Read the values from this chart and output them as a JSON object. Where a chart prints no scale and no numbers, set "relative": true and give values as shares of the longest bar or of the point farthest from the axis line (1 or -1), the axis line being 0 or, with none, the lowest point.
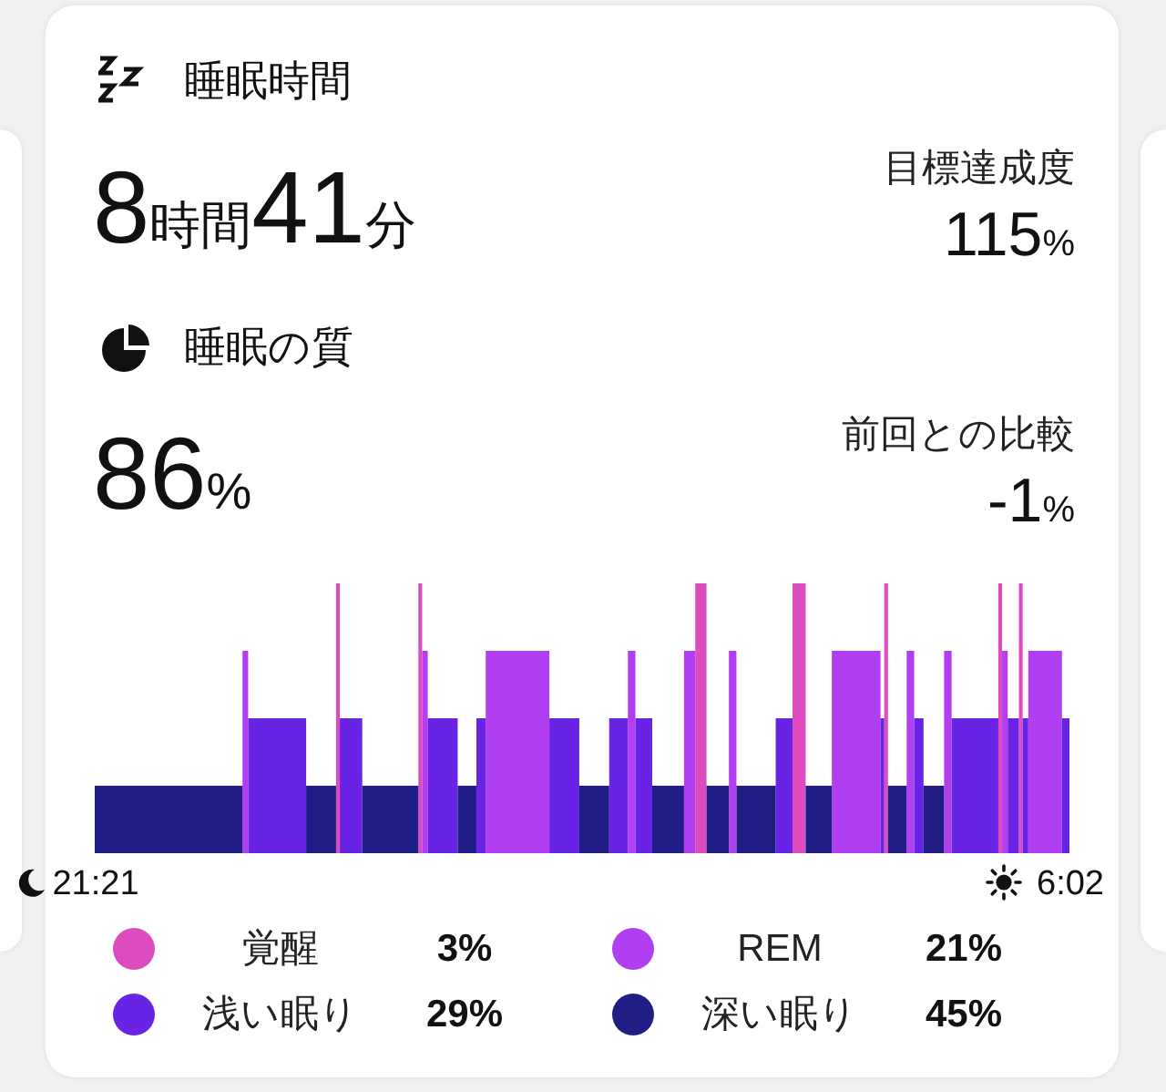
{
  "chart_data": [
    {
      "type": "other",
      "title": "睡眠時間",
      "annotations": [
        "8時間41分",
        "目標達成度",
        "115%"
      ]
    },
    {
      "type": "other",
      "title": "睡眠の質",
      "annotations": [
        "86%",
        "前回との比較",
        "-1%"
      ]
    },
    {
      "type": "area",
      "relative": true,
      "series": [
        {
          "name": "覚醒",
          "color": "#dd4cbf",
          "x": [
            "--01-01T23:30",
            "--01-01T23:30",
            "--01-01T23:32",
            "--01-01T23:32",
            "--01-02T00:14",
            "--01-02T00:14",
            "--01-02T00:16",
            "--01-02T00:16",
            "--01-02T02:42",
            "--01-02T02:42",
            "--01-02T02:48",
            "--01-02T02:48",
            "--01-02T03:34",
            "--01-02T03:34",
            "--01-02T03:41",
            "--01-02T03:41",
            "--01-02T04:23",
            "--01-02T04:23",
            "--01-02T04:25",
            "--01-02T04:25",
            "--01-02T05:24",
            "--01-02T05:24",
            "--01-02T05:26",
            "--01-02T05:26",
            "--01-02T05:35",
            "--01-02T05:35",
            "--01-02T05:37",
            "--01-02T05:37"
          ],
          "values": [
            0,
            1,
            1,
            0,
            0,
            1,
            1,
            0,
            0,
            1,
            1,
            0,
            0,
            1,
            1,
            0,
            0,
            1,
            1,
            0,
            0,
            1,
            1,
            0,
            0,
            1,
            1,
            0
          ]
        },
        {
          "name": "REM",
          "color": "#b13ef1",
          "x": [
            "--01-01T22:40",
            "--01-01T22:40",
            "--01-01T22:43",
            "--01-01T22:43",
            "--01-02T00:16",
            "--01-02T00:16",
            "--01-02T00:19",
            "--01-02T00:19",
            "--01-02T00:50",
            "--01-02T00:50",
            "--01-02T01:24",
            "--01-02T01:24",
            "--01-02T02:06",
            "--01-02T02:06",
            "--01-02T02:10",
            "--01-02T02:10",
            "--01-02T02:36",
            "--01-02T02:36",
            "--01-02T02:42",
            "--01-02T02:42",
            "--01-02T03:00",
            "--01-02T03:00",
            "--01-02T03:04",
            "--01-02T03:04",
            "--01-02T03:55",
            "--01-02T03:55",
            "--01-02T04:21",
            "--01-02T04:21",
            "--01-02T04:35",
            "--01-02T04:35",
            "--01-02T04:39",
            "--01-02T04:39",
            "--01-02T04:55",
            "--01-02T04:55",
            "--01-02T04:59",
            "--01-02T04:59",
            "--01-02T05:26",
            "--01-02T05:26",
            "--01-02T05:29",
            "--01-02T05:29",
            "--01-02T05:40",
            "--01-02T05:40",
            "--01-02T05:58",
            "--01-02T05:58"
          ],
          "values": [
            0,
            0.75,
            0.75,
            0,
            0,
            0.75,
            0.75,
            0,
            0,
            0.75,
            0.75,
            0,
            0,
            0.75,
            0.75,
            0,
            0,
            0.75,
            0.75,
            0,
            0,
            0.75,
            0.75,
            0,
            0,
            0.75,
            0.75,
            0,
            0,
            0.75,
            0.75,
            0,
            0,
            0.75,
            0.75,
            0,
            0,
            0.75,
            0.75,
            0,
            0,
            0.75,
            0.75,
            0
          ]
        },
        {
          "name": "浅い眠り",
          "color": "#6923e5",
          "x": [
            "--01-01T22:43",
            "--01-01T22:43",
            "--01-01T23:14",
            "--01-01T23:14",
            "--01-01T23:32",
            "--01-01T23:32",
            "--01-01T23:44",
            "--01-01T23:44",
            "--01-02T00:19",
            "--01-02T00:19",
            "--01-02T00:35",
            "--01-02T00:35",
            "--01-02T00:45",
            "--01-02T00:45",
            "--01-02T00:50",
            "--01-02T00:50",
            "--01-02T01:24",
            "--01-02T01:24",
            "--01-02T01:40",
            "--01-02T01:40",
            "--01-02T01:56",
            "--01-02T01:56",
            "--01-02T02:06",
            "--01-02T02:06",
            "--01-02T02:10",
            "--01-02T02:10",
            "--01-02T02:19",
            "--01-02T02:19",
            "--01-02T03:25",
            "--01-02T03:25",
            "--01-02T03:34",
            "--01-02T03:34",
            "--01-02T04:21",
            "--01-02T04:21",
            "--01-02T04:23",
            "--01-02T04:23",
            "--01-02T04:39",
            "--01-02T04:39",
            "--01-02T04:44",
            "--01-02T04:44",
            "--01-02T04:59",
            "--01-02T04:59",
            "--01-02T05:24",
            "--01-02T05:24",
            "--01-02T05:29",
            "--01-02T05:29",
            "--01-02T05:35",
            "--01-02T05:35",
            "--01-02T05:37",
            "--01-02T05:37",
            "--01-02T05:40",
            "--01-02T05:40",
            "--01-02T05:58",
            "--01-02T05:58",
            "--01-02T06:02",
            "--01-02T06:02"
          ],
          "values": [
            0,
            0.5,
            0.5,
            0,
            0,
            0.5,
            0.5,
            0,
            0,
            0.5,
            0.5,
            0,
            0,
            0.5,
            0.5,
            0,
            0,
            0.5,
            0.5,
            0,
            0,
            0.5,
            0.5,
            0,
            0,
            0.5,
            0.5,
            0,
            0,
            0.5,
            0.5,
            0,
            0,
            0.5,
            0.5,
            0,
            0,
            0.5,
            0.5,
            0,
            0,
            0.5,
            0.5,
            0,
            0,
            0.5,
            0.5,
            0,
            0,
            0.5,
            0.5,
            0,
            0,
            0.5,
            0.5,
            0
          ]
        },
        {
          "name": "深い眠り",
          "color": "#201d87",
          "x": [
            "--01-01T21:21",
            "--01-01T21:21",
            "--01-01T22:40",
            "--01-01T22:40",
            "--01-01T23:14",
            "--01-01T23:14",
            "--01-01T23:30",
            "--01-01T23:30",
            "--01-01T23:44",
            "--01-01T23:44",
            "--01-02T00:14",
            "--01-02T00:14",
            "--01-02T00:35",
            "--01-02T00:35",
            "--01-02T00:45",
            "--01-02T00:45",
            "--01-02T01:40",
            "--01-02T01:40",
            "--01-02T01:56",
            "--01-02T01:56",
            "--01-02T02:19",
            "--01-02T02:19",
            "--01-02T02:36",
            "--01-02T02:36",
            "--01-02T02:48",
            "--01-02T02:48",
            "--01-02T03:00",
            "--01-02T03:00",
            "--01-02T03:04",
            "--01-02T03:04",
            "--01-02T03:25",
            "--01-02T03:25",
            "--01-02T03:41",
            "--01-02T03:41",
            "--01-02T03:55",
            "--01-02T03:55",
            "--01-02T04:25",
            "--01-02T04:25",
            "--01-02T04:35",
            "--01-02T04:35",
            "--01-02T04:44",
            "--01-02T04:44",
            "--01-02T04:55",
            "--01-02T04:55"
          ],
          "values": [
            0,
            0.25,
            0.25,
            0,
            0,
            0.25,
            0.25,
            0,
            0,
            0.25,
            0.25,
            0,
            0,
            0.25,
            0.25,
            0,
            0,
            0.25,
            0.25,
            0,
            0,
            0.25,
            0.25,
            0,
            0,
            0.25,
            0.25,
            0,
            0,
            0.25,
            0.25,
            0,
            0,
            0.25,
            0.25,
            0,
            0,
            0.25,
            0.25,
            0,
            0,
            0.25,
            0.25,
            0
          ]
        }
      ],
      "xlim": [
        "--01-01T21:21",
        "--01-02T06:02"
      ],
      "xticks": [
        {
          "value": "--01-01T21:21",
          "label": "21:21"
        },
        {
          "value": "--01-02T06:02",
          "label": "6:02"
        }
      ],
      "legend": "bottom",
      "annotations": [
        "3%",
        "21%",
        "29%",
        "45%"
      ]
    }
  ]
}
